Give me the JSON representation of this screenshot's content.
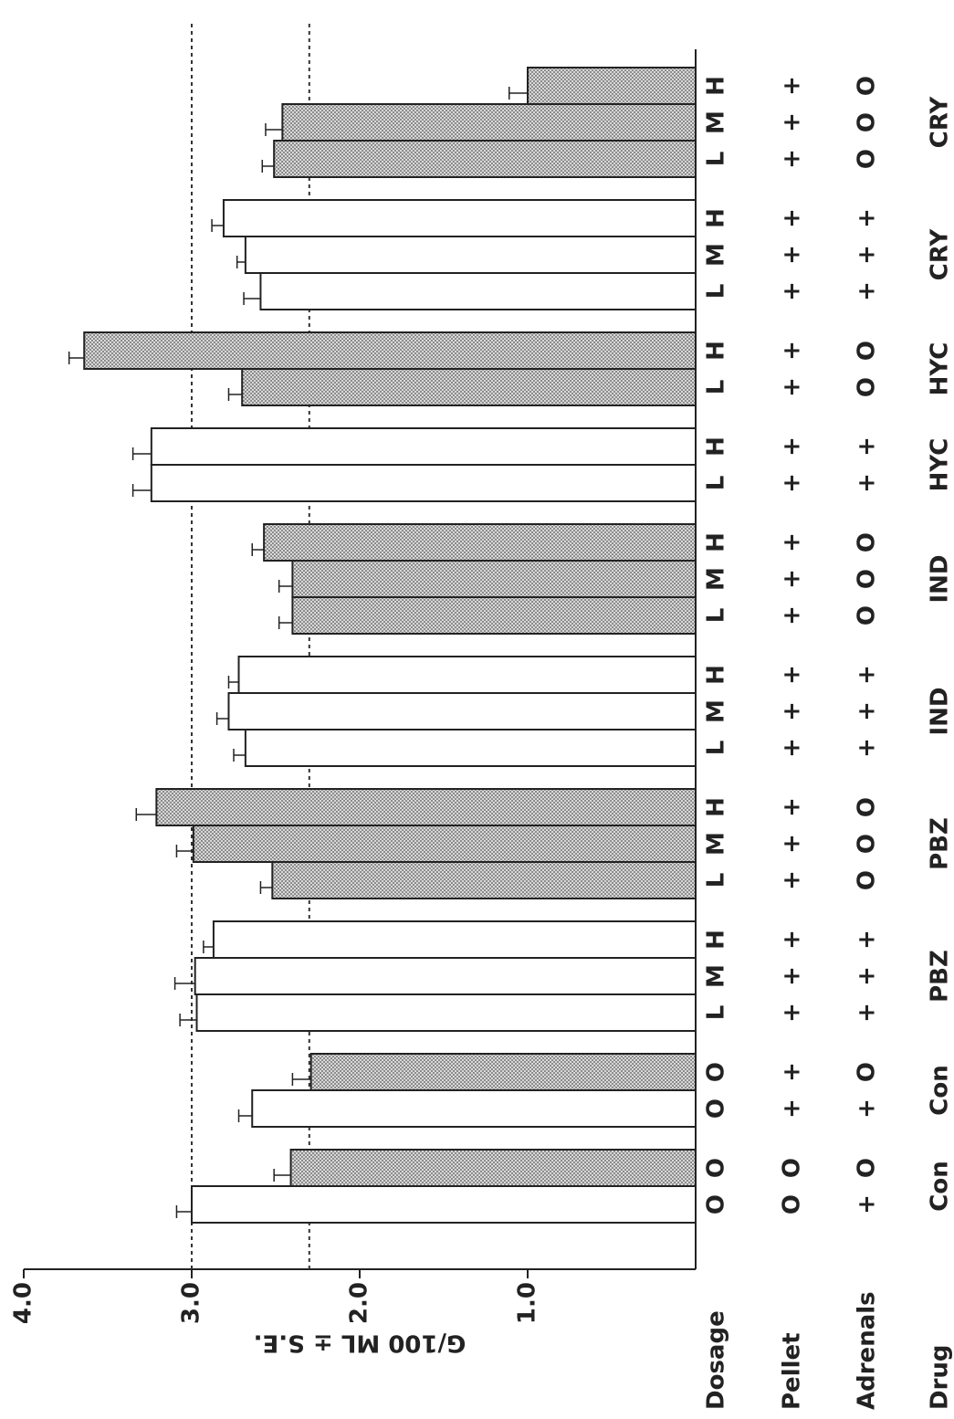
{
  "chart_data": {
    "type": "grouped_bar",
    "y_label": "G/100 ML ± S.E.",
    "ylim": [
      0,
      4
    ],
    "yticks": [
      {
        "value": 1,
        "label": "1.0"
      },
      {
        "value": 2,
        "label": "2.0"
      },
      {
        "value": 3,
        "label": "3.0"
      },
      {
        "value": 4,
        "label": "4.0"
      }
    ],
    "reference_lines": [
      3.0,
      2.3
    ],
    "row_labels": [
      "Dosage",
      "Pellet",
      "Adrenals",
      "Drug"
    ],
    "fill_by_adrenals": {
      "+": "#ffffff",
      "O": "#b4b4b4"
    },
    "groups": [
      {
        "drug": "Con",
        "dosage": [
          "O",
          "O"
        ],
        "pellet": [
          "O",
          "O"
        ],
        "adrenals": [
          "+",
          "O"
        ],
        "values": [
          3.0,
          2.41
        ],
        "errors": [
          0.09,
          0.1
        ]
      },
      {
        "drug": "Con",
        "dosage": [
          "O",
          "O"
        ],
        "pellet": [
          "+",
          "+"
        ],
        "adrenals": [
          "+",
          "O"
        ],
        "values": [
          2.64,
          2.29
        ],
        "errors": [
          0.08,
          0.11
        ]
      },
      {
        "drug": "PBZ",
        "dosage": [
          "L",
          "M",
          "H"
        ],
        "pellet": [
          "+",
          "+",
          "+"
        ],
        "adrenals": [
          "+",
          "+",
          "+"
        ],
        "values": [
          2.97,
          2.98,
          2.87
        ],
        "errors": [
          0.1,
          0.12,
          0.06
        ]
      },
      {
        "drug": "PBZ",
        "dosage": [
          "L",
          "M",
          "H"
        ],
        "pellet": [
          "+",
          "+",
          "+"
        ],
        "adrenals": [
          "O",
          "O",
          "O"
        ],
        "values": [
          2.52,
          2.99,
          3.21
        ],
        "errors": [
          0.07,
          0.1,
          0.12
        ]
      },
      {
        "drug": "IND",
        "dosage": [
          "L",
          "M",
          "H"
        ],
        "pellet": [
          "+",
          "+",
          "+"
        ],
        "adrenals": [
          "+",
          "+",
          "+"
        ],
        "values": [
          2.68,
          2.78,
          2.72
        ],
        "errors": [
          0.07,
          0.07,
          0.06
        ]
      },
      {
        "drug": "IND",
        "dosage": [
          "L",
          "M",
          "H"
        ],
        "pellet": [
          "+",
          "+",
          "+"
        ],
        "adrenals": [
          "O",
          "O",
          "O"
        ],
        "values": [
          2.4,
          2.4,
          2.57
        ],
        "errors": [
          0.08,
          0.08,
          0.07
        ]
      },
      {
        "drug": "HYC",
        "dosage": [
          "L",
          "H"
        ],
        "pellet": [
          "+",
          "+"
        ],
        "adrenals": [
          "+",
          "+"
        ],
        "values": [
          3.24,
          3.24
        ],
        "errors": [
          0.11,
          0.11
        ]
      },
      {
        "drug": "HYC",
        "dosage": [
          "L",
          "H"
        ],
        "pellet": [
          "+",
          "+"
        ],
        "adrenals": [
          "O",
          "O"
        ],
        "values": [
          2.7,
          3.64
        ],
        "errors": [
          0.08,
          0.09
        ]
      },
      {
        "drug": "CRY",
        "dosage": [
          "L",
          "M",
          "H"
        ],
        "pellet": [
          "+",
          "+",
          "+"
        ],
        "adrenals": [
          "+",
          "+",
          "+"
        ],
        "values": [
          2.59,
          2.68,
          2.81
        ],
        "errors": [
          0.1,
          0.05,
          0.07
        ]
      },
      {
        "drug": "CRY",
        "dosage": [
          "L",
          "M",
          "H"
        ],
        "pellet": [
          "+",
          "+",
          "+"
        ],
        "adrenals": [
          "O",
          "O",
          "O"
        ],
        "values": [
          2.51,
          2.46,
          1.0
        ],
        "errors": [
          0.07,
          0.1,
          0.11
        ]
      }
    ]
  }
}
